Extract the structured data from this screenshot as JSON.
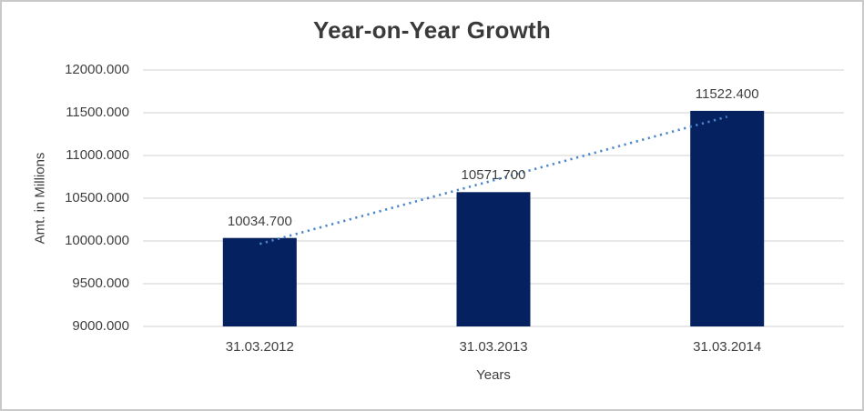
{
  "window": {
    "background": "#ffffff",
    "border_color": "#c9c9c9"
  },
  "chart_data": {
    "type": "bar",
    "title": "Year-on-Year Growth",
    "xlabel": "Years",
    "ylabel": "Amt. in Millions",
    "categories": [
      "31.03.2012",
      "31.03.2013",
      "31.03.2014"
    ],
    "values": [
      10034.7,
      10571.7,
      11522.4
    ],
    "value_labels": [
      "10034.700",
      "10571.700",
      "11522.400"
    ],
    "ylim": [
      9000,
      12000
    ],
    "ytick_values": [
      9000,
      9500,
      10000,
      10500,
      11000,
      11500,
      12000
    ],
    "ytick_labels": [
      "9000.000",
      "9500.000",
      "10000.000",
      "10500.000",
      "11000.000",
      "11500.000",
      "12000.000"
    ],
    "grid": true,
    "legend": "none",
    "trendline": "linear-dotted"
  },
  "colors": {
    "bar": "#05215f",
    "trendline": "#4a86c8",
    "gridline": "#d9d9d9",
    "text": "#404040",
    "title_text": "#3a3a3a"
  }
}
